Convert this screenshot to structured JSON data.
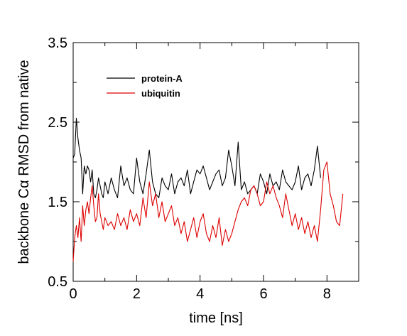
{
  "chart_data": {
    "type": "line",
    "title": "",
    "xlabel": "time [ns]",
    "ylabel": "backbone Cα RMSD from native",
    "xlim": [
      0,
      9
    ],
    "ylim": [
      0.5,
      3.5
    ],
    "x_ticks": [
      0,
      2,
      4,
      6,
      8
    ],
    "x_tick_labels": [
      "0",
      "2",
      "4",
      "6",
      "8"
    ],
    "y_ticks": [
      0.5,
      1.5,
      2.5,
      3.5
    ],
    "y_tick_labels": [
      "0.5",
      "1.5",
      "2.5",
      "3.5"
    ],
    "x_minor_step": 1,
    "y_minor_step": 0.5,
    "grid": false,
    "legend_position": "top-left",
    "series": [
      {
        "name": "protein-A",
        "color": "#000000",
        "x": [
          0.0,
          0.05,
          0.1,
          0.15,
          0.2,
          0.25,
          0.3,
          0.35,
          0.4,
          0.45,
          0.5,
          0.55,
          0.6,
          0.65,
          0.7,
          0.75,
          0.8,
          0.85,
          0.9,
          0.95,
          1.0,
          1.1,
          1.2,
          1.3,
          1.4,
          1.5,
          1.6,
          1.7,
          1.8,
          1.9,
          2.0,
          2.1,
          2.2,
          2.3,
          2.4,
          2.5,
          2.6,
          2.7,
          2.8,
          2.9,
          3.0,
          3.1,
          3.2,
          3.3,
          3.4,
          3.5,
          3.6,
          3.7,
          3.8,
          3.9,
          4.0,
          4.1,
          4.2,
          4.3,
          4.4,
          4.5,
          4.6,
          4.7,
          4.8,
          4.9,
          5.0,
          5.1,
          5.2,
          5.3,
          5.4,
          5.5,
          5.6,
          5.7,
          5.8,
          5.9,
          6.0,
          6.1,
          6.2,
          6.3,
          6.4,
          6.5,
          6.6,
          6.7,
          6.8,
          6.9,
          7.0,
          7.1,
          7.2,
          7.3,
          7.4,
          7.5,
          7.6,
          7.7,
          7.8
        ],
        "y": [
          2.05,
          2.1,
          2.55,
          2.3,
          2.15,
          2.05,
          1.6,
          1.95,
          1.85,
          1.95,
          1.9,
          1.75,
          1.9,
          1.6,
          1.55,
          1.65,
          1.8,
          1.7,
          1.6,
          1.55,
          1.75,
          1.6,
          1.8,
          1.65,
          1.55,
          1.95,
          1.7,
          1.8,
          1.65,
          1.6,
          2.05,
          1.75,
          1.6,
          1.85,
          2.15,
          1.75,
          1.6,
          1.55,
          1.8,
          1.7,
          1.65,
          1.85,
          1.6,
          1.75,
          1.8,
          1.7,
          1.9,
          1.6,
          1.75,
          1.9,
          1.85,
          1.95,
          1.8,
          1.65,
          1.75,
          1.85,
          1.9,
          1.7,
          1.8,
          2.15,
          1.95,
          1.7,
          2.25,
          1.65,
          1.75,
          1.6,
          1.65,
          1.7,
          1.6,
          1.85,
          1.75,
          1.6,
          1.85,
          1.7,
          1.75,
          1.65,
          1.9,
          1.75,
          1.7,
          1.65,
          1.75,
          1.95,
          1.65,
          1.8,
          1.85,
          1.7,
          1.9,
          2.2,
          1.8
        ]
      },
      {
        "name": "ubiquitin",
        "color": "#dd0000",
        "x": [
          0.0,
          0.05,
          0.1,
          0.15,
          0.2,
          0.25,
          0.3,
          0.35,
          0.4,
          0.45,
          0.5,
          0.55,
          0.6,
          0.65,
          0.7,
          0.75,
          0.8,
          0.85,
          0.9,
          0.95,
          1.0,
          1.1,
          1.2,
          1.3,
          1.4,
          1.5,
          1.6,
          1.7,
          1.8,
          1.9,
          2.0,
          2.1,
          2.2,
          2.3,
          2.4,
          2.5,
          2.6,
          2.7,
          2.8,
          2.9,
          3.0,
          3.1,
          3.2,
          3.3,
          3.4,
          3.5,
          3.6,
          3.7,
          3.8,
          3.9,
          4.0,
          4.1,
          4.2,
          4.3,
          4.4,
          4.5,
          4.6,
          4.7,
          4.8,
          4.9,
          5.0,
          5.1,
          5.2,
          5.3,
          5.4,
          5.5,
          5.6,
          5.7,
          5.8,
          5.9,
          6.0,
          6.1,
          6.2,
          6.3,
          6.4,
          6.5,
          6.6,
          6.7,
          6.8,
          6.9,
          7.0,
          7.1,
          7.2,
          7.3,
          7.4,
          7.5,
          7.6,
          7.7,
          7.8,
          7.9,
          8.0,
          8.1,
          8.2,
          8.3,
          8.4,
          8.5
        ],
        "y": [
          0.75,
          1.05,
          1.2,
          1.05,
          1.3,
          1.0,
          1.45,
          1.2,
          1.4,
          1.5,
          1.35,
          1.55,
          1.7,
          1.45,
          1.25,
          1.3,
          1.6,
          1.35,
          1.25,
          1.15,
          1.3,
          1.2,
          1.25,
          1.15,
          1.35,
          1.2,
          1.3,
          1.15,
          1.4,
          1.25,
          1.35,
          1.2,
          1.55,
          1.3,
          1.75,
          1.45,
          1.6,
          1.3,
          1.5,
          1.25,
          1.35,
          1.45,
          1.2,
          1.3,
          1.1,
          1.25,
          1.0,
          1.15,
          1.3,
          1.05,
          1.25,
          1.35,
          1.1,
          1.0,
          1.2,
          1.05,
          1.3,
          0.95,
          1.15,
          1.0,
          1.1,
          1.25,
          1.4,
          1.5,
          1.55,
          1.45,
          1.65,
          1.7,
          1.6,
          1.45,
          1.5,
          1.75,
          1.6,
          1.7,
          1.55,
          1.45,
          1.3,
          1.6,
          1.4,
          1.2,
          1.35,
          1.15,
          1.3,
          1.1,
          1.25,
          1.05,
          1.2,
          1.0,
          1.4,
          1.9,
          2.0,
          1.6,
          1.45,
          1.25,
          1.2,
          1.6
        ]
      }
    ]
  }
}
